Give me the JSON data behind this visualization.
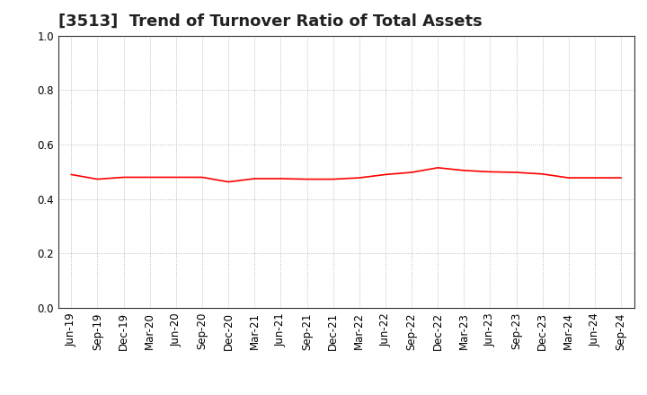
{
  "title": "[3513]  Trend of Turnover Ratio of Total Assets",
  "x_labels": [
    "Jun-19",
    "Sep-19",
    "Dec-19",
    "Mar-20",
    "Jun-20",
    "Sep-20",
    "Dec-20",
    "Mar-21",
    "Jun-21",
    "Sep-21",
    "Dec-21",
    "Mar-22",
    "Jun-22",
    "Sep-22",
    "Dec-22",
    "Mar-23",
    "Jun-23",
    "Sep-23",
    "Dec-23",
    "Mar-24",
    "Jun-24",
    "Sep-24"
  ],
  "y_values": [
    0.49,
    0.473,
    0.48,
    0.48,
    0.48,
    0.48,
    0.463,
    0.475,
    0.475,
    0.473,
    0.473,
    0.478,
    0.49,
    0.498,
    0.515,
    0.505,
    0.5,
    0.498,
    0.492,
    0.478,
    0.478,
    0.478
  ],
  "line_color": "#FF0000",
  "line_width": 1.2,
  "ylim": [
    0.0,
    1.0
  ],
  "yticks": [
    0.0,
    0.2,
    0.4,
    0.6,
    0.8,
    1.0
  ],
  "background_color": "#FFFFFF",
  "plot_bg_color": "#FFFFFF",
  "grid_color": "#999999",
  "title_fontsize": 13,
  "tick_fontsize": 8.5
}
